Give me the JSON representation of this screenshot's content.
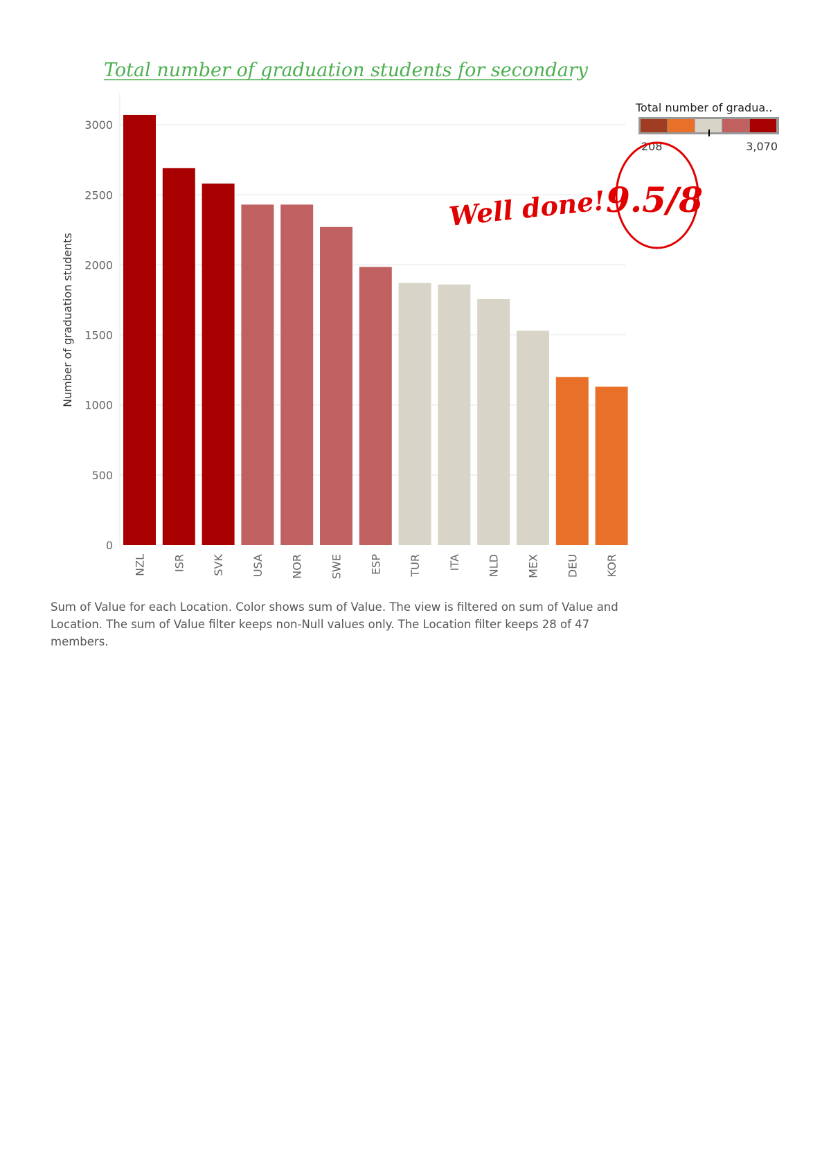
{
  "chart_data": {
    "type": "bar",
    "title": "Total number of graduation students for secondary",
    "xlabel": "",
    "ylabel": "Number of graduation students",
    "categories": [
      "NZL",
      "ISR",
      "SVK",
      "USA",
      "NOR",
      "SWE",
      "ESP",
      "TUR",
      "ITA",
      "NLD",
      "MEX",
      "DEU",
      "KOR"
    ],
    "values": [
      3070,
      2690,
      2580,
      2430,
      2430,
      2270,
      1985,
      1870,
      1860,
      1755,
      1530,
      1200,
      1130
    ],
    "bar_colors": [
      "#a80000",
      "#a80000",
      "#a80000",
      "#c06060",
      "#c06060",
      "#c06060",
      "#c06060",
      "#d8d4c8",
      "#d8d4c8",
      "#d8d4c8",
      "#d8d4c8",
      "#e87028",
      "#e87028"
    ],
    "yticks": [
      0,
      500,
      1000,
      1500,
      2000,
      2500,
      3000
    ],
    "ylim": [
      0,
      3200
    ],
    "grid": true,
    "legend": {
      "title": "Total number of gradua..",
      "min_label": "208",
      "max_label": "3,070",
      "placement": "top-right",
      "colors": [
        "#a03c22",
        "#e87028",
        "#d8d4c8",
        "#c06060",
        "#a80000"
      ]
    }
  },
  "annotations": {
    "comment": "Well done!",
    "score": "9.5/8"
  },
  "caption": "Sum of Value for each Location.  Color shows sum of Value. The view is filtered on sum of Value and Location. The sum of Value filter keeps non-Null values only. The Location filter keeps 28 of 47 members."
}
